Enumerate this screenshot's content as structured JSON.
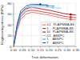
{
  "chart_data": {
    "type": "line",
    "xlabel": "True deformation",
    "ylabel": "Engineering stress (MPa)",
    "xlim": [
      0.0,
      0.35
    ],
    "ylim": [
      0,
      80
    ],
    "xticks": [
      {
        "value": 0.0,
        "label": "0.00"
      },
      0.05,
      {
        "value": 0.1,
        "label": "0.10"
      },
      0.15,
      {
        "value": 0.2,
        "label": "0.20"
      },
      0.25,
      {
        "value": 0.3,
        "label": "0.30"
      },
      0.35
    ],
    "yticks": [
      0,
      20,
      40,
      60,
      80
    ],
    "grid": true,
    "legend": "lower right",
    "series": [
      {
        "name": "0.1   PLA/PMMA-BS",
        "color": "#e06060",
        "marker": "square",
        "x": [
          0.0,
          0.02,
          0.04,
          0.07,
          0.1,
          0.13,
          0.16,
          0.2,
          0.24,
          0.28,
          0.32,
          0.35
        ],
        "values": [
          0,
          30,
          50,
          60,
          63,
          62,
          60,
          58,
          55,
          52,
          50,
          49
        ],
        "marker_x": [
          0.32
        ],
        "marker_y": [
          50
        ]
      },
      {
        "name": "1     PLA/PMMA-BS",
        "color": "#cc2020",
        "marker": "circle",
        "x": [
          0.0,
          0.02,
          0.04,
          0.07,
          0.1,
          0.13,
          0.16,
          0.2,
          0.24,
          0.28,
          0.32,
          0.35
        ],
        "values": [
          0,
          35,
          55,
          65,
          67,
          66,
          64,
          62,
          59,
          56,
          54,
          53
        ],
        "marker_x": [
          0.32
        ],
        "marker_y": [
          54
        ]
      },
      {
        "name": "10   PLA/PMMA-BS",
        "color": "#990000",
        "marker": "diamond",
        "x": [
          0.0,
          0.02,
          0.04,
          0.07,
          0.1,
          0.13,
          0.16,
          0.2,
          0.24,
          0.28,
          0.32,
          0.35
        ],
        "values": [
          0,
          38,
          60,
          70,
          72,
          71,
          69,
          67,
          64,
          61,
          59,
          58
        ],
        "marker_x": [
          0.32
        ],
        "marker_y": [
          59
        ]
      },
      {
        "name": "0.1   ABS/PC",
        "color": "#90c8f0",
        "marker": "square",
        "x": [
          0.0,
          0.02,
          0.04,
          0.07,
          0.1,
          0.13,
          0.16,
          0.2,
          0.24,
          0.27
        ],
        "values": [
          0,
          35,
          58,
          68,
          72,
          73,
          73,
          72,
          71,
          71
        ],
        "marker_x": [
          0.22
        ],
        "marker_y": [
          72
        ]
      },
      {
        "name": "1     ABS/PC",
        "color": "#4488cc",
        "marker": "circle",
        "x": [
          0.0,
          0.02,
          0.04,
          0.07,
          0.1,
          0.13,
          0.16,
          0.2,
          0.23
        ],
        "values": [
          0,
          38,
          62,
          72,
          75,
          76,
          76,
          75,
          75
        ],
        "marker_x": [
          0.19
        ],
        "marker_y": [
          75
        ]
      },
      {
        "name": "T     ABS/PC",
        "color": "#1050a0",
        "marker": "diamond",
        "x": [
          0.0,
          0.02,
          0.04,
          0.07,
          0.1,
          0.13,
          0.16,
          0.19
        ],
        "values": [
          0,
          42,
          66,
          75,
          78,
          78,
          77,
          77
        ],
        "marker_x": [
          0.15
        ],
        "marker_y": [
          78
        ]
      }
    ]
  }
}
